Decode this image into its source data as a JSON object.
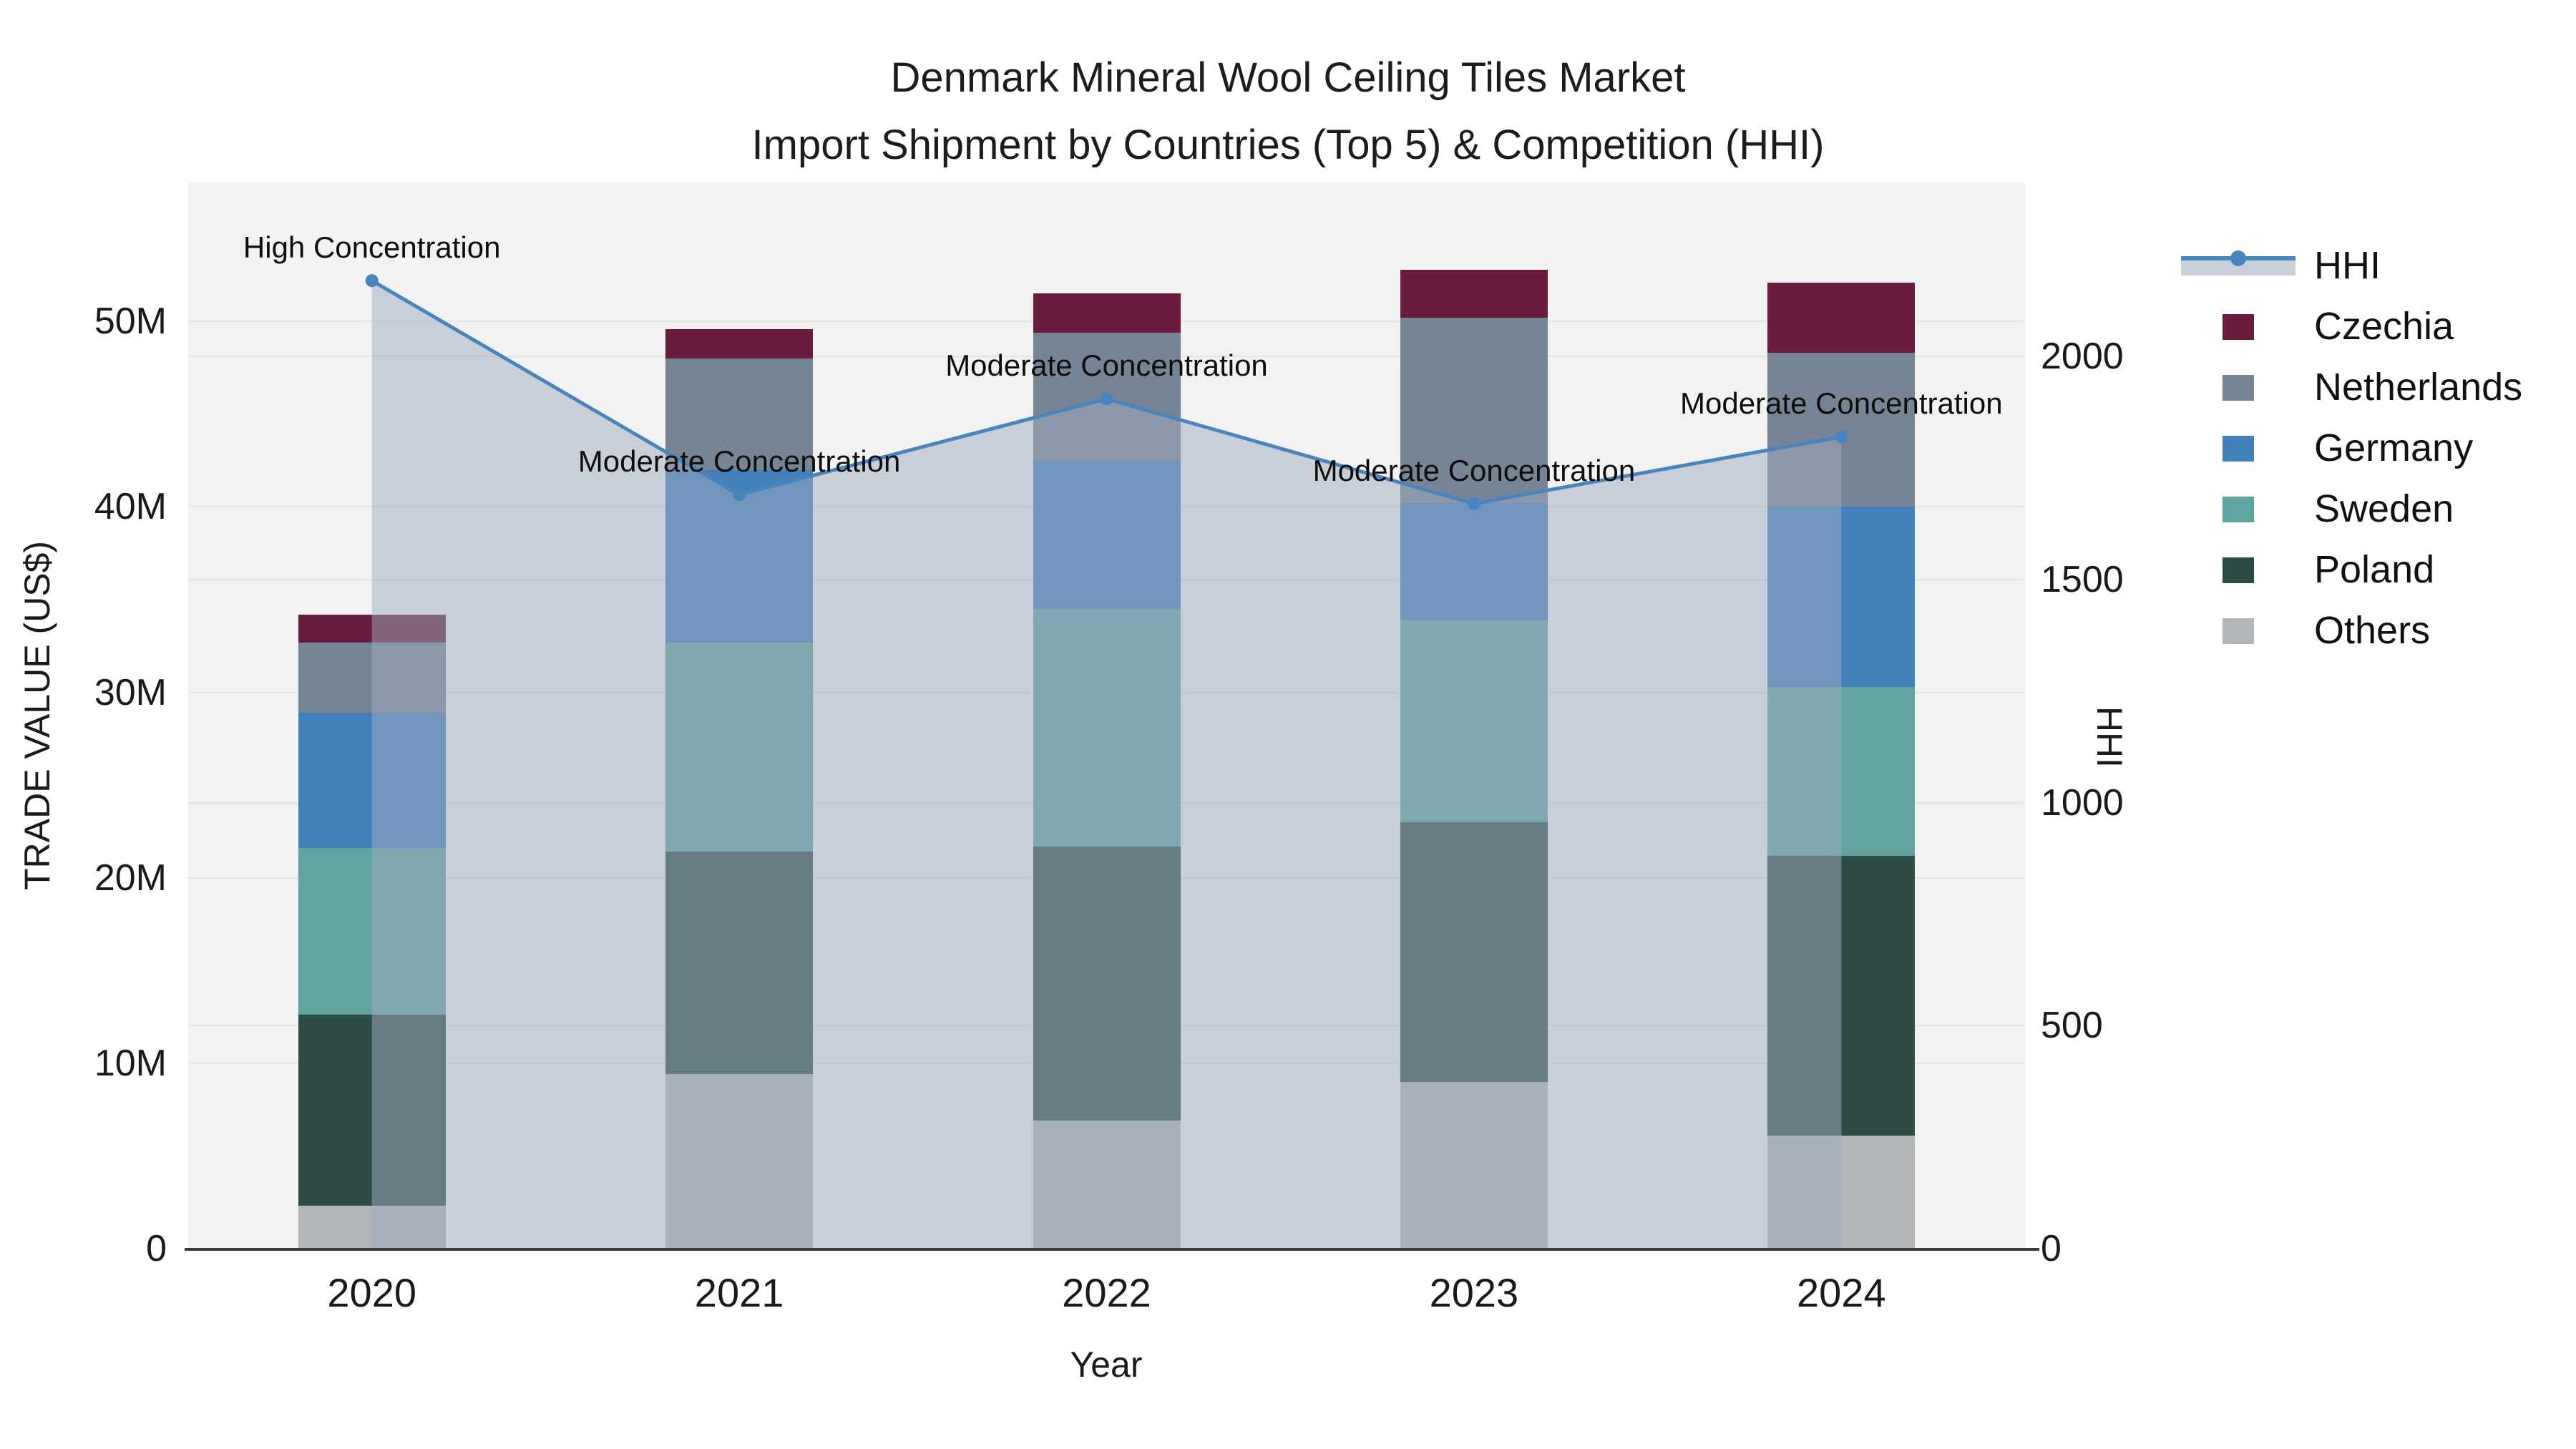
{
  "chart_data": {
    "type": "stacked_bar_with_line",
    "title_line1": "Denmark Mineral Wool Ceiling Tiles Market",
    "title_line2": "Import Shipment by Countries (Top 5) & Competition (HHI)",
    "categories": [
      "2020",
      "2021",
      "2022",
      "2023",
      "2024"
    ],
    "bar_series": [
      {
        "name": "Others",
        "color": "#b3b6b8",
        "values_musd": [
          2.3,
          9.4,
          6.9,
          9.0,
          6.1
        ]
      },
      {
        "name": "Poland",
        "color": "#2d4c46",
        "values_musd": [
          10.3,
          12.0,
          14.8,
          14.0,
          15.1
        ]
      },
      {
        "name": "Sweden",
        "color": "#5fa4a0",
        "values_musd": [
          9.0,
          11.3,
          12.8,
          10.9,
          9.1
        ]
      },
      {
        "name": "Germany",
        "color": "#4280ba",
        "values_musd": [
          7.3,
          9.3,
          8.0,
          6.3,
          9.7
        ]
      },
      {
        "name": "Netherlands",
        "color": "#768595",
        "values_musd": [
          3.8,
          6.0,
          6.9,
          10.0,
          8.3
        ]
      },
      {
        "name": "Czechia",
        "color": "#6a1c3e",
        "values_musd": [
          1.5,
          1.6,
          2.1,
          2.6,
          3.8
        ]
      }
    ],
    "totals_musd": [
      34.2,
      49.6,
      51.5,
      52.8,
      52.1
    ],
    "line_series": {
      "name": "HHI",
      "color": "#4a84bd",
      "area_fill": "rgba(160,172,192,0.5)",
      "values": [
        2170,
        1690,
        1905,
        1670,
        1820
      ]
    },
    "xaxis": {
      "title": "Year"
    },
    "yaxis_left": {
      "title": "TRADE VALUE (US$)",
      "ticks": [
        "0",
        "10M",
        "20M",
        "30M",
        "40M",
        "50M"
      ],
      "tick_values_musd": [
        0,
        10,
        20,
        30,
        40,
        50
      ],
      "max_musd": 57.5
    },
    "yaxis_right": {
      "title": "HHI",
      "ticks": [
        "0",
        "500",
        "1000",
        "1500",
        "2000"
      ],
      "tick_values": [
        0,
        500,
        1000,
        1500,
        2000
      ],
      "max": 2390
    },
    "annotations": [
      {
        "category": "2020",
        "text": "High Concentration"
      },
      {
        "category": "2021",
        "text": "Moderate Concentration"
      },
      {
        "category": "2022",
        "text": "Moderate Concentration"
      },
      {
        "category": "2023",
        "text": "Moderate Concentration"
      },
      {
        "category": "2024",
        "text": "Moderate Concentration"
      }
    ],
    "legend": [
      "HHI",
      "Czechia",
      "Netherlands",
      "Germany",
      "Sweden",
      "Poland",
      "Others"
    ],
    "legend_sample_fill": "#c9cfd9"
  }
}
